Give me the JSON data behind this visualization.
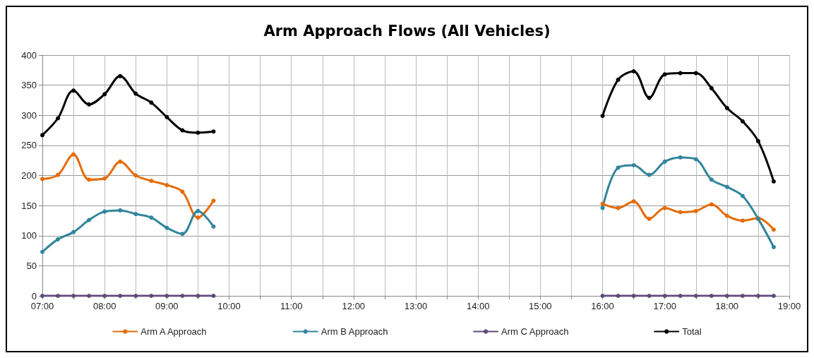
{
  "chart_data": {
    "type": "line",
    "title": "Arm Approach Flows (All Vehicles)",
    "x": [
      7,
      7.25,
      7.5,
      7.75,
      8,
      8.25,
      8.5,
      8.75,
      9,
      9.25,
      9.5,
      9.75,
      10,
      16,
      16.25,
      16.5,
      16.75,
      17,
      17.25,
      17.5,
      17.75,
      18,
      18.25,
      18.5,
      18.75
    ],
    "series": [
      {
        "name": "Arm A Approach",
        "color": "#e46c0a",
        "values": [
          194,
          201,
          235,
          193,
          195,
          223,
          200,
          191,
          184,
          173,
          130,
          158,
          null,
          153,
          146,
          157,
          128,
          146,
          139,
          141,
          152,
          133,
          125,
          129,
          110
        ]
      },
      {
        "name": "Arm B Approach",
        "color": "#31859c",
        "values": [
          73,
          94,
          106,
          126,
          140,
          142,
          136,
          130,
          113,
          103,
          141,
          115,
          null,
          146,
          213,
          217,
          201,
          223,
          230,
          227,
          193,
          181,
          166,
          128,
          81
        ]
      },
      {
        "name": "Arm C Approach",
        "color": "#604a7b",
        "values": [
          0,
          0,
          0,
          0,
          0,
          0,
          0,
          0,
          0,
          0,
          0,
          0,
          null,
          0,
          0,
          0,
          0,
          0,
          0,
          0,
          0,
          0,
          0,
          0,
          0
        ]
      },
      {
        "name": "Total",
        "color": "#000000",
        "values": [
          267,
          295,
          341,
          318,
          335,
          365,
          336,
          321,
          297,
          275,
          271,
          273,
          null,
          299,
          359,
          373,
          329,
          368,
          370,
          370,
          345,
          312,
          290,
          257,
          190
        ]
      }
    ],
    "xlim": [
      7,
      19
    ],
    "xticks": [
      {
        "value": 7,
        "label": "07:00"
      },
      {
        "value": 7.5,
        "label": null
      },
      {
        "value": 8,
        "label": "08:00"
      },
      {
        "value": 8.5,
        "label": null
      },
      {
        "value": 9,
        "label": "09:00"
      },
      {
        "value": 9.5,
        "label": null
      },
      {
        "value": 10,
        "label": "10:00"
      },
      {
        "value": 10.5,
        "label": null
      },
      {
        "value": 11,
        "label": "11:00"
      },
      {
        "value": 11.5,
        "label": null
      },
      {
        "value": 12,
        "label": "12:00"
      },
      {
        "value": 12.5,
        "label": null
      },
      {
        "value": 13,
        "label": "13:00"
      },
      {
        "value": 13.5,
        "label": null
      },
      {
        "value": 14,
        "label": "14:00"
      },
      {
        "value": 14.5,
        "label": null
      },
      {
        "value": 15,
        "label": "15:00"
      },
      {
        "value": 15.5,
        "label": null
      },
      {
        "value": 16,
        "label": "16:00"
      },
      {
        "value": 16.5,
        "label": null
      },
      {
        "value": 17,
        "label": "17:00"
      },
      {
        "value": 17.5,
        "label": null
      },
      {
        "value": 18,
        "label": "18:00"
      },
      {
        "value": 18.5,
        "label": null
      },
      {
        "value": 19,
        "label": "19:00"
      }
    ],
    "ylim": [
      0,
      400
    ],
    "yticks": [
      0,
      50,
      100,
      150,
      200,
      250,
      300,
      350,
      400
    ],
    "grid": true,
    "legend": "bottom",
    "marker": "circle",
    "line_style": "solid"
  }
}
